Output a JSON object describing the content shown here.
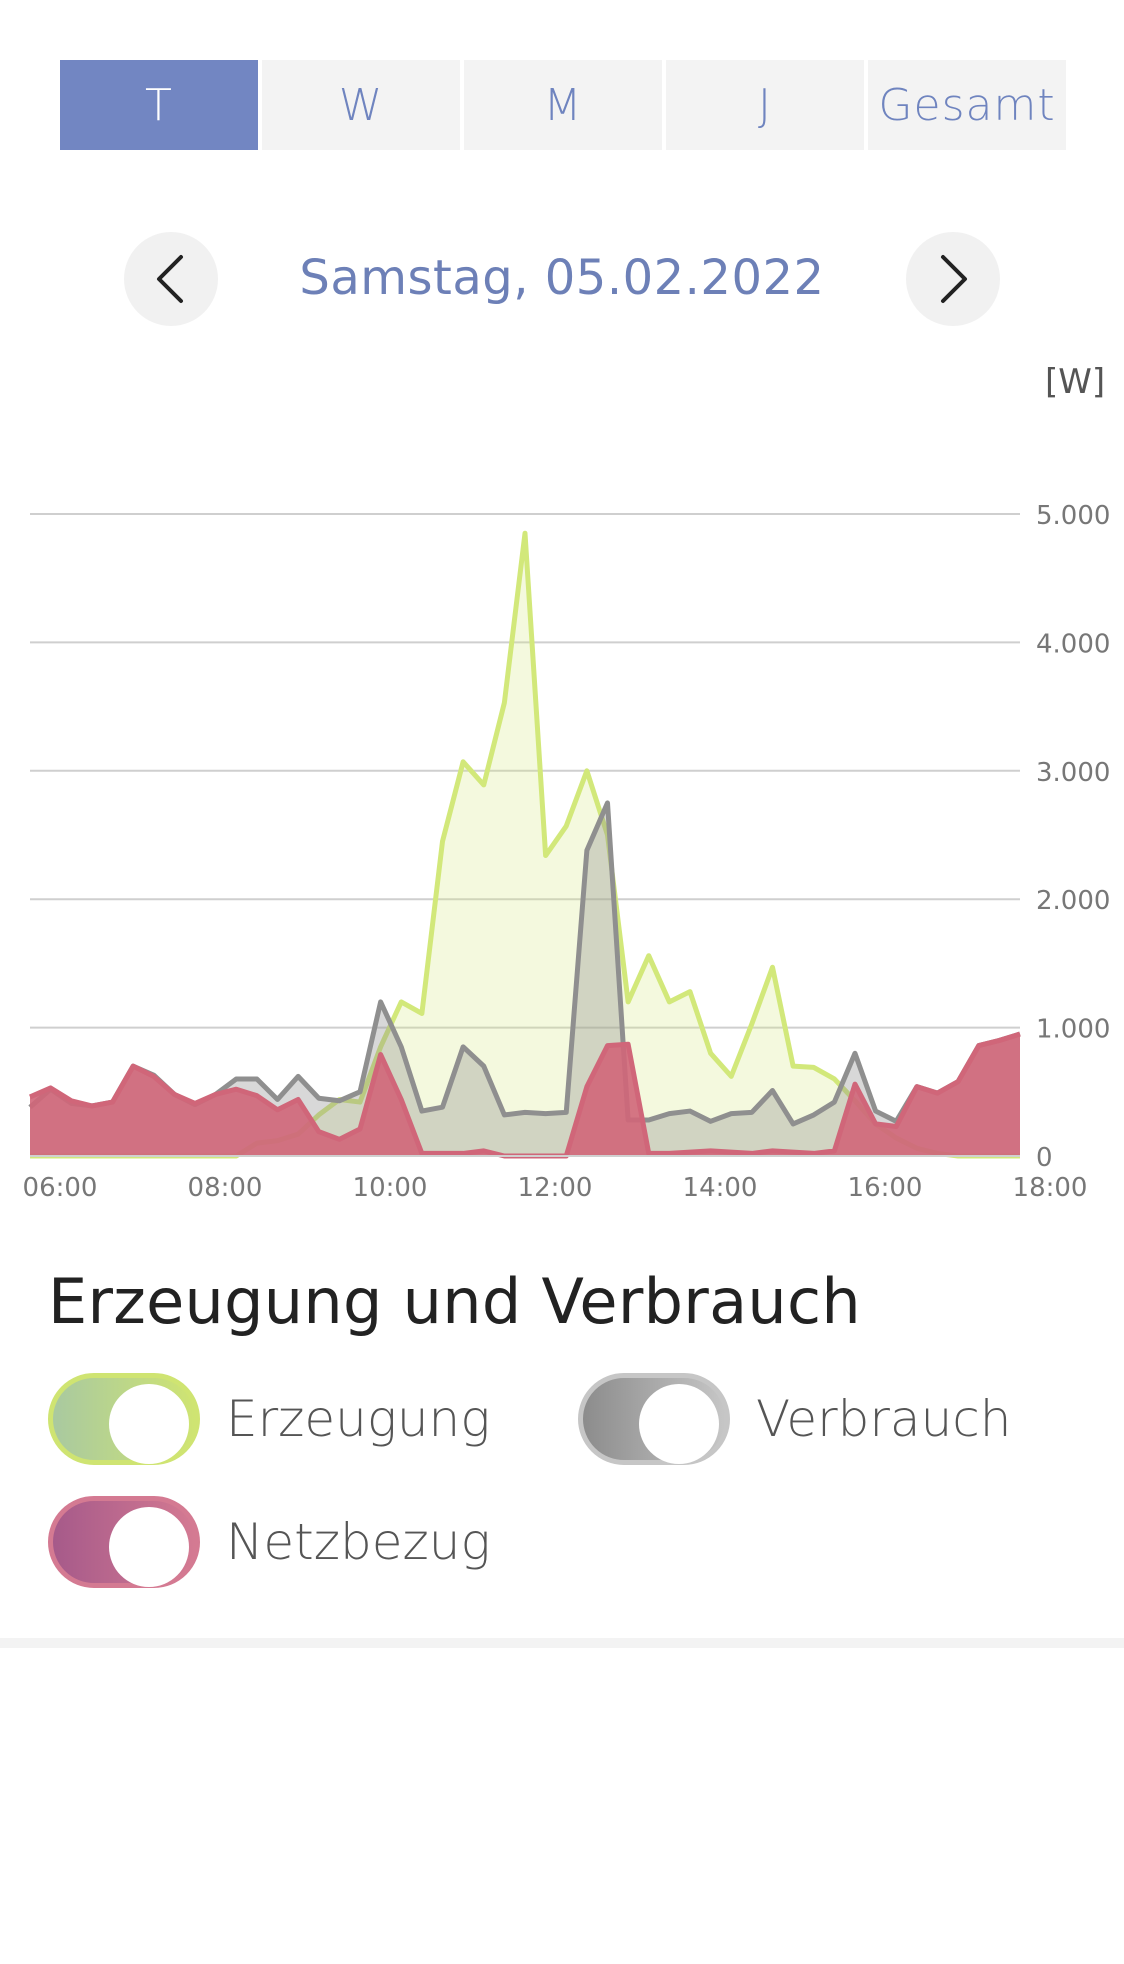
{
  "tabs": [
    {
      "label": "T",
      "active": true
    },
    {
      "label": "W",
      "active": false
    },
    {
      "label": "M",
      "active": false
    },
    {
      "label": "J",
      "active": false
    },
    {
      "label": "Gesamt",
      "active": false
    }
  ],
  "date_nav": {
    "date_label": "Samstag, 05.02.2022",
    "prev_icon": "chevron-left-icon",
    "next_icon": "chevron-right-icon"
  },
  "unit_label": "[W]",
  "chart_data": {
    "type": "area",
    "x_ticks": [
      "06:00",
      "08:00",
      "10:00",
      "12:00",
      "14:00",
      "16:00",
      "18:00"
    ],
    "y_ticks": [
      "0",
      "1.000",
      "2.000",
      "3.000",
      "4.000",
      "5.000"
    ],
    "xlim_hours": [
      6,
      18
    ],
    "ylim": [
      0,
      5000
    ],
    "grid": true,
    "x": [
      "06:00",
      "06:15",
      "06:30",
      "06:45",
      "07:00",
      "07:15",
      "07:30",
      "07:45",
      "08:00",
      "08:15",
      "08:30",
      "08:45",
      "09:00",
      "09:15",
      "09:30",
      "09:45",
      "10:00",
      "10:15",
      "10:30",
      "10:45",
      "11:00",
      "11:15",
      "11:30",
      "11:45",
      "12:00",
      "12:15",
      "12:30",
      "12:45",
      "13:00",
      "13:15",
      "13:30",
      "13:45",
      "14:00",
      "14:15",
      "14:30",
      "14:45",
      "15:00",
      "15:15",
      "15:30",
      "15:45",
      "16:00",
      "16:15",
      "16:30",
      "16:45",
      "17:00",
      "17:15",
      "17:30",
      "17:45",
      "18:00"
    ],
    "series": [
      {
        "name": "Erzeugung",
        "color": "#d2e87a",
        "values": [
          0,
          0,
          0,
          0,
          0,
          0,
          0,
          0,
          0,
          0,
          0,
          100,
          120,
          170,
          320,
          440,
          420,
          850,
          1200,
          1110,
          2450,
          3070,
          2890,
          3530,
          4850,
          2340,
          2570,
          3000,
          2500,
          1200,
          1560,
          1200,
          1280,
          800,
          620,
          1030,
          1470,
          700,
          690,
          600,
          430,
          250,
          140,
          60,
          20,
          0,
          0,
          0,
          0
        ]
      },
      {
        "name": "Verbrauch",
        "color": "#8f8f8f",
        "values": [
          380,
          520,
          410,
          390,
          420,
          700,
          630,
          480,
          400,
          480,
          600,
          600,
          440,
          620,
          450,
          430,
          500,
          1200,
          850,
          350,
          380,
          850,
          700,
          320,
          340,
          330,
          340,
          2380,
          2750,
          280,
          280,
          330,
          350,
          270,
          330,
          340,
          510,
          250,
          320,
          420,
          800,
          350,
          270,
          540,
          490,
          580,
          860,
          900,
          950
        ]
      },
      {
        "name": "Netzbezug",
        "color": "#d06679",
        "values": [
          460,
          530,
          430,
          390,
          420,
          700,
          620,
          480,
          410,
          480,
          520,
          470,
          360,
          440,
          190,
          130,
          210,
          790,
          440,
          20,
          20,
          20,
          40,
          0,
          0,
          0,
          0,
          540,
          860,
          870,
          20,
          20,
          30,
          40,
          30,
          20,
          40,
          30,
          20,
          40,
          560,
          250,
          230,
          540,
          490,
          580,
          860,
          900,
          950
        ]
      }
    ]
  },
  "section": {
    "title": "Erzeugung und Verbrauch"
  },
  "legend": [
    {
      "label": "Erzeugung",
      "on": true,
      "grad_from": "#a9c9a0",
      "grad_to": "#cfe472",
      "border": "#cfe472"
    },
    {
      "label": "Verbrauch",
      "on": true,
      "grad_from": "#8c8c8c",
      "grad_to": "#c6c6c6",
      "border": "#c6c6c6"
    },
    {
      "label": "Netzbezug",
      "on": true,
      "grad_from": "#a65a8a",
      "grad_to": "#d47a92",
      "border": "#d47a92"
    }
  ]
}
